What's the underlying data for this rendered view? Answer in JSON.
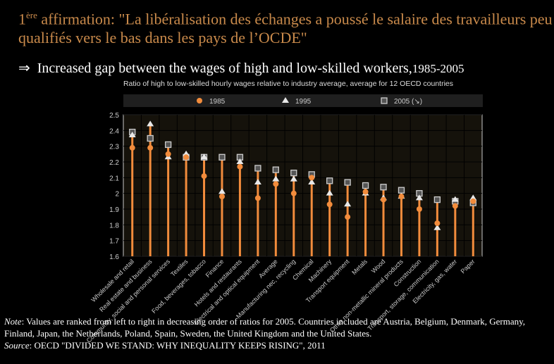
{
  "slide": {
    "title_prefix": "1",
    "title_sup": "ère",
    "title_rest": " affirmation: \"La libéralisation des échanges a poussé le salaire des travailleurs peu qualifiés vers le bas dans les pays de l’OCDE\"",
    "arrow": "⇒",
    "subtitle": "Increased gap between the wages of  high and low-skilled workers,",
    "subtitle_years": "1985-2005",
    "note_label": "Note",
    "note_text": ": Values are ranked from left to right in decreasing order of  ratios for 2005. Countries included are Austria, Belgium, Denmark, Germany, Finland, Japan, the Netherlands, Poland, Spain, Sweden, the United Kingdom and the United States.",
    "source_label": "Source",
    "source_text": ": OECD \"DIVIDED WE STAND: WHY INEQUALITY KEEPS RISING\", 2011"
  },
  "chart_data": {
    "type": "scatter",
    "title": "Ratio of high to low-skilled hourly wages relative to industry average, average for 12 OECD countries",
    "ylim": [
      1.6,
      2.5
    ],
    "yticks": [
      "1.6",
      "1.7",
      "1.8",
      "1.9",
      "2",
      "2.1",
      "2.2",
      "2.3",
      "2.4",
      "2.5"
    ],
    "grid": true,
    "legend_position": "top",
    "categories": [
      "Wholesale and retail",
      "Real estate and business",
      "Community, social and personal services",
      "Textiles",
      "Food, beverages, tobacco",
      "Finance",
      "Hotels and restaurants",
      "Electrical and optical equipment",
      "Average",
      "Manufacturing nec, recycling",
      "Chemical",
      "Machinery",
      "Transport equipment",
      "Metals",
      "Wood",
      "Other non-metallic mineral products",
      "Construction",
      "Transport, storage, communication",
      "Electricity, gas, water",
      "Paper"
    ],
    "series": [
      {
        "name": "1985",
        "marker": "circle",
        "color": "#f28c3c",
        "values": [
          2.29,
          2.29,
          2.25,
          2.23,
          2.11,
          1.98,
          2.17,
          1.97,
          2.06,
          2.0,
          2.1,
          1.93,
          1.85,
          2.01,
          1.96,
          1.98,
          1.9,
          1.81,
          1.92,
          1.95
        ]
      },
      {
        "name": "1995",
        "marker": "triangle",
        "color": "#e8e8e8",
        "values": [
          2.37,
          2.44,
          2.23,
          2.25,
          2.23,
          2.01,
          2.2,
          2.07,
          2.09,
          2.09,
          2.07,
          2.0,
          1.93,
          2.0,
          1.97,
          1.98,
          1.97,
          1.78,
          1.96,
          1.97
        ]
      },
      {
        "name": "2005 (↘)",
        "marker": "square",
        "color": "#555555",
        "values": [
          2.39,
          2.35,
          2.31,
          2.23,
          2.23,
          2.23,
          2.23,
          2.16,
          2.15,
          2.13,
          2.12,
          2.08,
          2.07,
          2.05,
          2.04,
          2.02,
          2.0,
          1.96,
          1.95,
          1.94
        ]
      }
    ]
  }
}
